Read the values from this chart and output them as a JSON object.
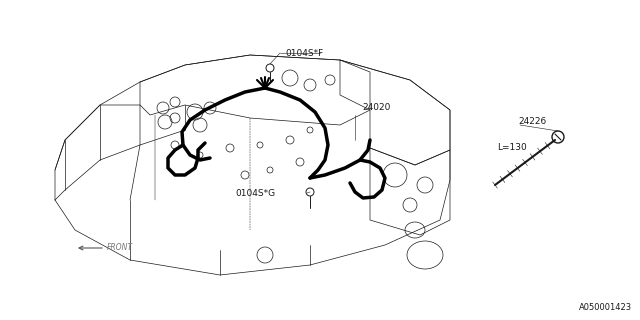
{
  "bg_color": "#ffffff",
  "line_color": "#1a1a1a",
  "label_color": "#1a1a1a",
  "part_number_bottom": "A050001423",
  "labels": {
    "0104S_F": "0104S*F",
    "24020": "24020",
    "0104S_G": "0104S*G",
    "24226": "24226",
    "L130": "L=130",
    "FRONT": "FRONT"
  },
  "font_size_labels": 6.5,
  "font_size_part": 6
}
